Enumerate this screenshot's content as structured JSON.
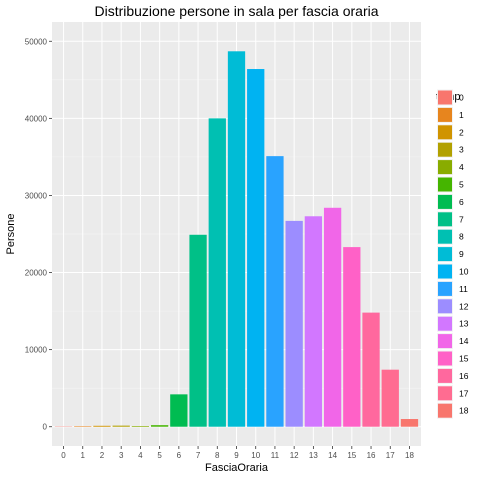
{
  "chart_data": {
    "type": "bar",
    "title": "Distribuzione persone in sala per fascia oraria",
    "xlabel": "FasciaOraria",
    "ylabel": "Persone",
    "categories": [
      "0",
      "1",
      "2",
      "3",
      "4",
      "5",
      "6",
      "7",
      "8",
      "9",
      "10",
      "11",
      "12",
      "13",
      "14",
      "15",
      "16",
      "17",
      "18"
    ],
    "values": [
      40,
      70,
      120,
      140,
      90,
      200,
      4200,
      24900,
      40000,
      48700,
      46400,
      35100,
      26700,
      27300,
      28400,
      23300,
      14800,
      7400,
      1000
    ],
    "colors": [
      "#F8766D",
      "#E7851E",
      "#D09400",
      "#B2A100",
      "#89AC00",
      "#45B500",
      "#00BC51",
      "#00C087",
      "#00C0B2",
      "#00BCD6",
      "#00B3F2",
      "#29A3FF",
      "#9C8DFF",
      "#D277FF",
      "#F166E8",
      "#FF61C7",
      "#FF689E",
      "#FF6C91",
      "#F8766D"
    ],
    "ylim": [
      0,
      50000
    ],
    "yticks": [
      0,
      10000,
      20000,
      30000,
      40000,
      50000
    ],
    "grid": true,
    "legend": {
      "title": "temp",
      "position": "right",
      "entries": [
        "0",
        "1",
        "2",
        "3",
        "4",
        "5",
        "6",
        "7",
        "8",
        "9",
        "10",
        "11",
        "12",
        "13",
        "14",
        "15",
        "16",
        "17",
        "18"
      ]
    }
  }
}
